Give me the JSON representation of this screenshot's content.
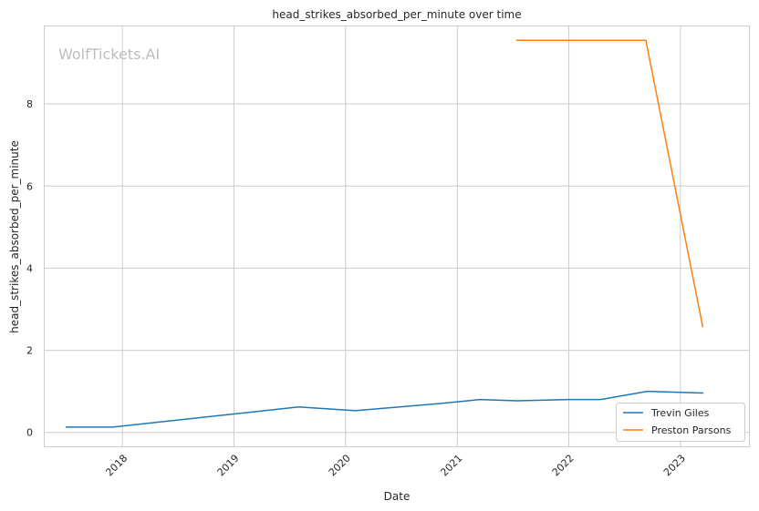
{
  "chart_data": {
    "type": "line",
    "title": "head_strikes_absorbed_per_minute over time",
    "xlabel": "Date",
    "ylabel": "head_strikes_absorbed_per_minute",
    "watermark": "WolfTickets.AI",
    "xlim": [
      "2017-04-20",
      "2023-08-15"
    ],
    "ylim": [
      -0.35,
      9.9
    ],
    "x_ticks": [
      {
        "date": "2018-01-01",
        "label": "2018"
      },
      {
        "date": "2019-01-01",
        "label": "2019"
      },
      {
        "date": "2020-01-01",
        "label": "2020"
      },
      {
        "date": "2021-01-01",
        "label": "2021"
      },
      {
        "date": "2022-01-01",
        "label": "2022"
      },
      {
        "date": "2023-01-01",
        "label": "2023"
      }
    ],
    "y_ticks": [
      0,
      2,
      4,
      6,
      8
    ],
    "grid": true,
    "legend_position": "bottom-right",
    "series": [
      {
        "name": "Trevin Giles",
        "color": "#1f77b4",
        "points": [
          {
            "date": "2017-07-01",
            "value": 0.13
          },
          {
            "date": "2017-12-01",
            "value": 0.13
          },
          {
            "date": "2019-08-01",
            "value": 0.62
          },
          {
            "date": "2020-02-01",
            "value": 0.53
          },
          {
            "date": "2020-11-01",
            "value": 0.7
          },
          {
            "date": "2021-03-15",
            "value": 0.8
          },
          {
            "date": "2021-07-15",
            "value": 0.77
          },
          {
            "date": "2022-01-01",
            "value": 0.8
          },
          {
            "date": "2022-04-15",
            "value": 0.8
          },
          {
            "date": "2022-09-15",
            "value": 1.0
          },
          {
            "date": "2023-03-15",
            "value": 0.96
          }
        ]
      },
      {
        "name": "Preston Parsons",
        "color": "#ff7f0e",
        "points": [
          {
            "date": "2021-07-15",
            "value": 9.55
          },
          {
            "date": "2022-09-10",
            "value": 9.55
          },
          {
            "date": "2023-03-15",
            "value": 2.58
          }
        ]
      }
    ]
  }
}
